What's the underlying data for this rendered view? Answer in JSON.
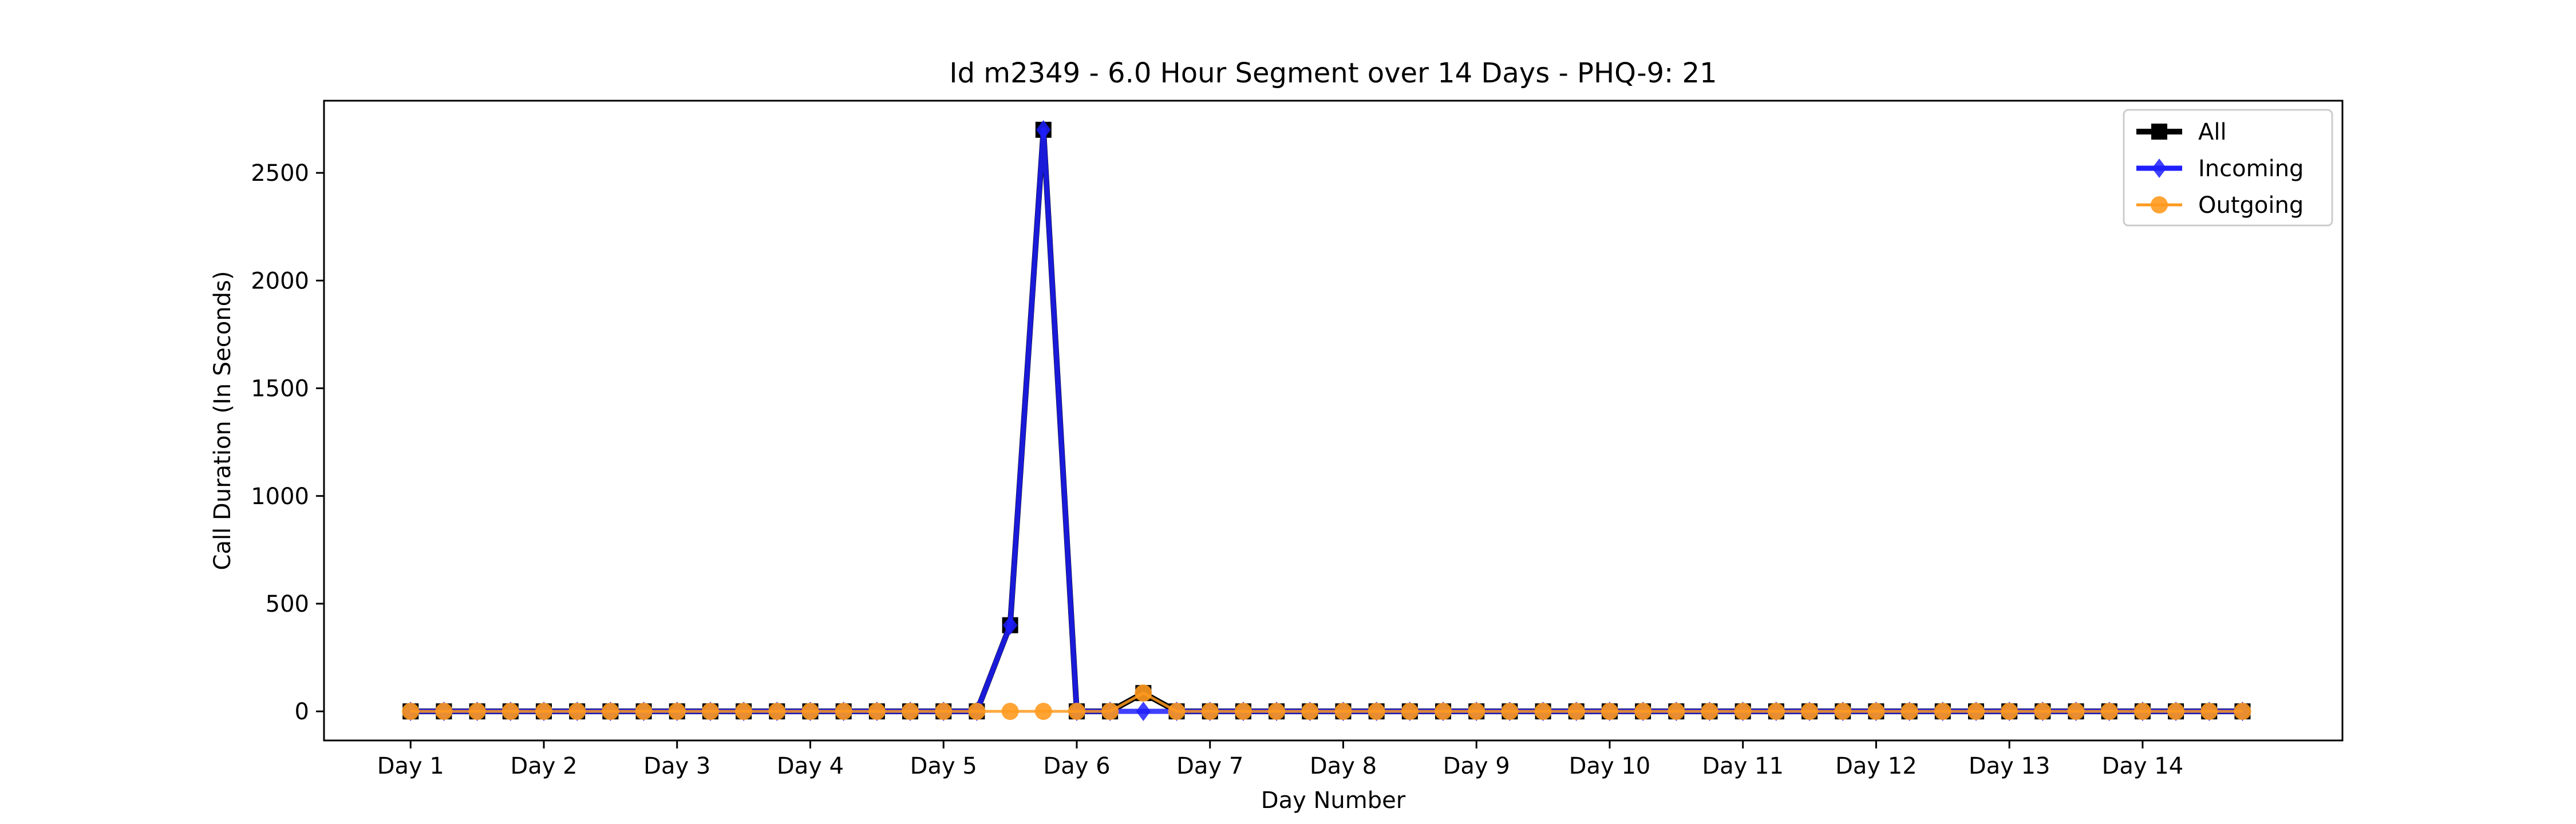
{
  "chart_data": {
    "type": "line",
    "title": "Id m2349 - 6.0 Hour Segment over 14 Days - PHQ-9: 21",
    "xlabel": "Day Number",
    "ylabel": "Call Duration (In Seconds)",
    "xlim": [
      -0.65,
      14.5
    ],
    "ylim": [
      -135,
      2835
    ],
    "grid": false,
    "legend_position": "top-right",
    "x_ticks": [
      0,
      1,
      2,
      3,
      4,
      5,
      6,
      7,
      8,
      9,
      10,
      11,
      12,
      13
    ],
    "x_tick_labels": [
      "Day 1",
      "Day 2",
      "Day 3",
      "Day 4",
      "Day 5",
      "Day 6",
      "Day 7",
      "Day 8",
      "Day 9",
      "Day 10",
      "Day 11",
      "Day 12",
      "Day 13",
      "Day 14"
    ],
    "y_ticks": [
      0,
      500,
      1000,
      1500,
      2000,
      2500
    ],
    "y_tick_labels": [
      "0",
      "500",
      "1000",
      "1500",
      "2000",
      "2500"
    ],
    "x": [
      0,
      0.25,
      0.5,
      0.75,
      1,
      1.25,
      1.5,
      1.75,
      2,
      2.25,
      2.5,
      2.75,
      3,
      3.25,
      3.5,
      3.75,
      4,
      4.25,
      4.5,
      4.75,
      5,
      5.25,
      5.5,
      5.75,
      6,
      6.25,
      6.5,
      6.75,
      7,
      7.25,
      7.5,
      7.75,
      8,
      8.25,
      8.5,
      8.75,
      9,
      9.25,
      9.5,
      9.75,
      10,
      10.25,
      10.5,
      10.75,
      11,
      11.25,
      11.5,
      11.75,
      12,
      12.25,
      12.5,
      12.75,
      13,
      13.25,
      13.5,
      13.75
    ],
    "series": [
      {
        "name": "All",
        "color": "#000000",
        "marker": "square",
        "values": [
          0,
          0,
          0,
          0,
          0,
          0,
          0,
          0,
          0,
          0,
          0,
          0,
          0,
          0,
          0,
          0,
          0,
          0,
          400,
          2700,
          0,
          0,
          85,
          0,
          0,
          0,
          0,
          0,
          0,
          0,
          0,
          0,
          0,
          0,
          0,
          0,
          0,
          0,
          0,
          0,
          0,
          0,
          0,
          0,
          0,
          0,
          0,
          0,
          0,
          0,
          0,
          0,
          0,
          0,
          0,
          0
        ]
      },
      {
        "name": "Incoming",
        "color": "#1f1fff",
        "marker": "diamond",
        "values": [
          0,
          0,
          0,
          0,
          0,
          0,
          0,
          0,
          0,
          0,
          0,
          0,
          0,
          0,
          0,
          0,
          0,
          0,
          400,
          2700,
          0,
          0,
          0,
          0,
          0,
          0,
          0,
          0,
          0,
          0,
          0,
          0,
          0,
          0,
          0,
          0,
          0,
          0,
          0,
          0,
          0,
          0,
          0,
          0,
          0,
          0,
          0,
          0,
          0,
          0,
          0,
          0,
          0,
          0,
          0,
          0
        ]
      },
      {
        "name": "Outgoing",
        "color": "#ff9a1f",
        "marker": "circle",
        "values": [
          0,
          0,
          0,
          0,
          0,
          0,
          0,
          0,
          0,
          0,
          0,
          0,
          0,
          0,
          0,
          0,
          0,
          0,
          0,
          0,
          0,
          0,
          85,
          0,
          0,
          0,
          0,
          0,
          0,
          0,
          0,
          0,
          0,
          0,
          0,
          0,
          0,
          0,
          0,
          0,
          0,
          0,
          0,
          0,
          0,
          0,
          0,
          0,
          0,
          0,
          0,
          0,
          0,
          0,
          0,
          0
        ]
      }
    ]
  }
}
